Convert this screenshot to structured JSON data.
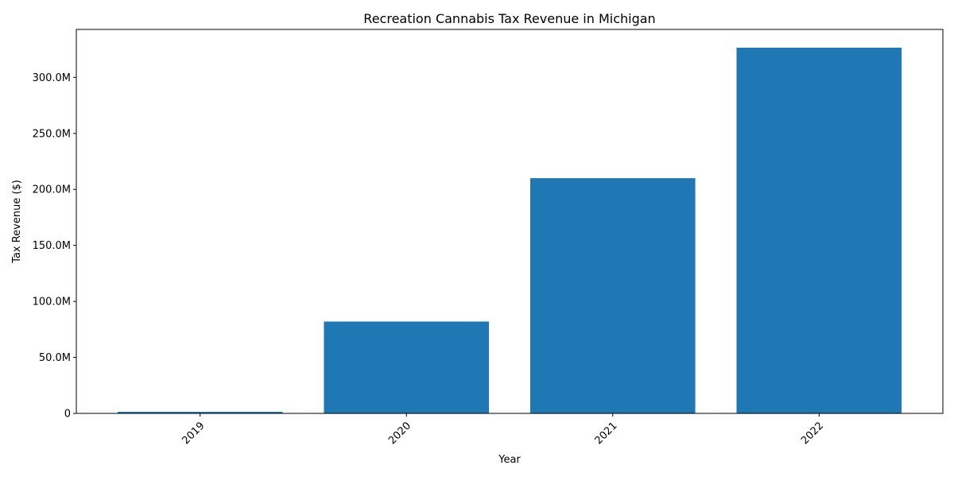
{
  "chart_data": {
    "type": "bar",
    "title": "Recreation Cannabis Tax Revenue in Michigan",
    "xlabel": "Year",
    "ylabel": "Tax Revenue ($)",
    "categories": [
      "2019",
      "2020",
      "2021",
      "2022"
    ],
    "values": [
      1400000,
      82000000,
      210000000,
      326500000
    ],
    "ylim": [
      0,
      342800000
    ],
    "yticks": [
      0,
      50000000,
      100000000,
      150000000,
      200000000,
      250000000,
      300000000
    ],
    "ytick_labels": [
      "0",
      "50.0M",
      "100.0M",
      "150.0M",
      "200.0M",
      "250.0M",
      "300.0M"
    ],
    "xtick_rotation": 45,
    "bar_color": "#1f77b4",
    "grid": false,
    "legend": "none"
  }
}
